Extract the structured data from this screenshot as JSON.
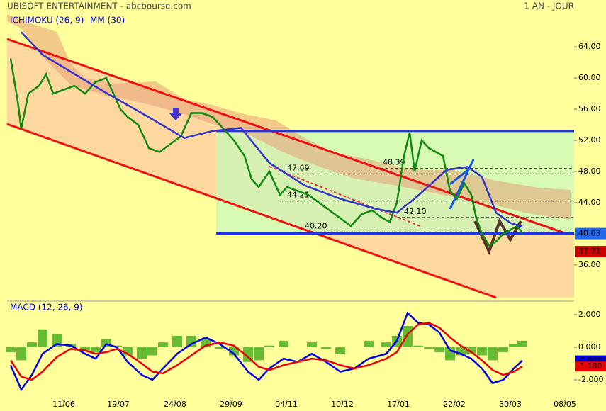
{
  "chart_data": [
    {
      "type": "line",
      "title": "UBISOFT ENTERTAINMENT - abcbourse.com",
      "subtitle": "1 AN - JOUR",
      "xlim": [
        0,
        800
      ],
      "xticks": [
        {
          "value": 80,
          "label": "11/06"
        },
        {
          "value": 157,
          "label": "19/07"
        },
        {
          "value": 237,
          "label": "24/08"
        },
        {
          "value": 316,
          "label": "29/09"
        },
        {
          "value": 394,
          "label": "04/11"
        },
        {
          "value": 473,
          "label": "10/12"
        },
        {
          "value": 552,
          "label": "17/01"
        },
        {
          "value": 631,
          "label": "22/02"
        },
        {
          "value": 710,
          "label": "30/03"
        },
        {
          "value": 787,
          "label": "08/05"
        }
      ],
      "ylim": [
        31.8,
        68.2
      ],
      "yticks": [
        {
          "value": 36,
          "label": "36.00"
        },
        {
          "value": 40,
          "label": "40.00"
        },
        {
          "value": 44,
          "label": "44.00"
        },
        {
          "value": 48,
          "label": "48.00"
        },
        {
          "value": 52,
          "label": "52.00"
        },
        {
          "value": 56,
          "label": "56.00"
        },
        {
          "value": 60,
          "label": "60.00"
        },
        {
          "value": 64,
          "label": "64.00"
        }
      ],
      "series": [
        {
          "name": "ICHIMOKU (26, 9)",
          "color": "#118811",
          "x": [
            5,
            15,
            20,
            30,
            45,
            55,
            65,
            80,
            95,
            110,
            125,
            140,
            150,
            160,
            170,
            185,
            200,
            215,
            230,
            245,
            260,
            275,
            290,
            305,
            320,
            335,
            345,
            355,
            370,
            385,
            395,
            410,
            425,
            440,
            455,
            470,
            485,
            500,
            515,
            530,
            540,
            550,
            560,
            568,
            575,
            585,
            595,
            605,
            615,
            625,
            635,
            645,
            655,
            662,
            670,
            680,
            690,
            700,
            710,
            720,
            727
          ],
          "values": [
            62.5,
            57,
            53.5,
            58,
            59,
            60.5,
            58,
            58.5,
            59,
            58,
            59.5,
            60,
            58,
            56,
            55,
            54,
            51,
            50.5,
            51.5,
            52.5,
            55.5,
            55.5,
            55,
            53.5,
            52,
            50,
            47,
            46,
            48,
            45,
            46,
            45.5,
            45,
            44,
            43,
            42,
            41,
            42.5,
            43,
            42,
            41.5,
            44,
            50,
            53,
            48,
            52,
            51,
            50.5,
            50,
            45.5,
            44.5,
            46.5,
            45,
            42,
            40,
            38.5,
            39,
            40,
            40.5,
            41,
            40.03
          ]
        },
        {
          "name": "MM (30)",
          "color": "#3333cc",
          "x": [
            20,
            50,
            130,
            190,
            250,
            290,
            330,
            370,
            420,
            470,
            520,
            550,
            580,
            620,
            650,
            670,
            690,
            710,
            727
          ],
          "values": [
            65.9,
            63,
            58.6,
            55.5,
            52.3,
            53.2,
            53.6,
            49.1,
            46.2,
            44.5,
            43.2,
            42.7,
            44.9,
            48.2,
            48.6,
            47.3,
            42.7,
            41.4,
            40.9
          ]
        }
      ],
      "resistance": 53.2,
      "support": 40.03,
      "levels": [
        47.69,
        48.39,
        44.21,
        {
          "value": 42.1,
          "label": "42.10"
        },
        {
          "value": 40.2,
          "label": "40.20"
        }
      ],
      "price_tags": [
        {
          "value": 40.03,
          "color": "#2266ee"
        },
        {
          "value": 37.71,
          "color": "#cc0000"
        }
      ]
    },
    {
      "type": "line",
      "title": "MACD (12, 26, 9)",
      "xlim": [
        0,
        800
      ],
      "ylim": [
        -3.26,
        2.61
      ],
      "yticks": [
        {
          "value": -2,
          "label": "-2.000"
        },
        {
          "value": 0,
          "label": "0.000"
        },
        {
          "value": 2,
          "label": "2.000"
        }
      ],
      "x": [
        5,
        20,
        35,
        50,
        70,
        90,
        110,
        125,
        140,
        155,
        170,
        190,
        205,
        220,
        240,
        260,
        280,
        300,
        320,
        340,
        355,
        370,
        390,
        410,
        430,
        450,
        470,
        490,
        510,
        535,
        550,
        565,
        580,
        595,
        610,
        625,
        640,
        655,
        670,
        685,
        700,
        715,
        727
      ],
      "series": [
        {
          "color": "#0000ee",
          "values": [
            -1.1,
            -2.6,
            -1.7,
            -0.4,
            0.2,
            0.1,
            -0.4,
            -0.7,
            0.2,
            0,
            -0.9,
            -1.7,
            -2.0,
            -1.3,
            -0.4,
            0.2,
            0.6,
            0.2,
            -0.4,
            -1.5,
            -2.0,
            -1.3,
            -0.7,
            -0.9,
            -0.4,
            -0.9,
            -1.5,
            -1.3,
            -0.7,
            -0.4,
            0.4,
            2.1,
            1.5,
            1.4,
            0.9,
            -0.2,
            -0.4,
            -0.7,
            -1.3,
            -2.2,
            -2.0,
            -1.3,
            -0.8081
          ]
        },
        {
          "color": "#ee0000",
          "values": [
            -0.8,
            -1.8,
            -2.0,
            -1.5,
            -0.6,
            -0.1,
            -0.2,
            -0.4,
            -0.3,
            -0.1,
            -0.4,
            -1.0,
            -1.5,
            -1.6,
            -1.1,
            -0.5,
            0.1,
            0.3,
            0.1,
            -0.6,
            -1.2,
            -1.4,
            -1.1,
            -0.9,
            -0.7,
            -0.8,
            -1.1,
            -1.3,
            -1.1,
            -0.7,
            -0.3,
            0.8,
            1.4,
            1.5,
            1.2,
            0.6,
            0.1,
            -0.3,
            -0.8,
            -1.4,
            -1.7,
            -1.5,
            -1.18
          ]
        },
        {
          "type": "bar",
          "color": "#66bb33",
          "values": [
            -0.3,
            -0.8,
            0.3,
            1.1,
            0.8,
            0.2,
            -0.2,
            -0.3,
            0.5,
            0.1,
            -0.5,
            -0.7,
            -0.5,
            0.3,
            0.7,
            0.7,
            0.5,
            -0.1,
            -0.5,
            -0.9,
            -0.8,
            0.1,
            0.4,
            0,
            0.3,
            -0.1,
            -0.4,
            0,
            0.4,
            0.3,
            0.7,
            1.3,
            0.1,
            -0.1,
            -0.3,
            -0.8,
            -0.5,
            -0.4,
            -0.5,
            -0.8,
            -0.3,
            0.2,
            0.4
          ]
        }
      ],
      "value_tags": [
        {
          "value": -0.8081,
          "color": "#0000ee"
        },
        {
          "value": {
            "value": -1.18,
            "label": "-1.180"
          },
          "color": "#ee0000"
        }
      ]
    }
  ]
}
